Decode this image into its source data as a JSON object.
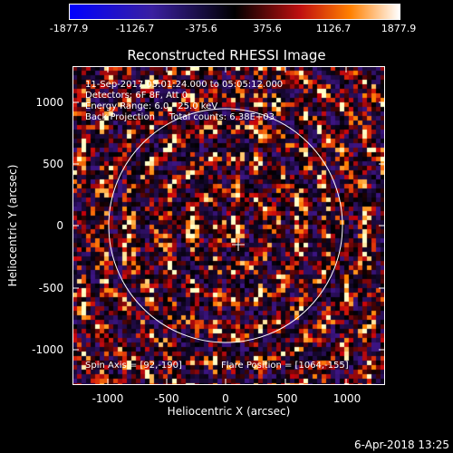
{
  "title": "Reconstructed RHESSI Image",
  "colorbar": {
    "ticks": [
      "-1877.9",
      "-1126.7",
      "-375.6",
      "375.6",
      "1126.7",
      "1877.9"
    ],
    "min": -1877.9,
    "max": 1877.9
  },
  "info_lines": {
    "time": "11-Sep-2017 05:01:24.000 to 05:05:12.000",
    "detectors": "Detectors: 6F 8F, Att 0",
    "energy": "Energy Range: 6.0 - 25.0 keV",
    "method": "Back Projection     Total counts: 6.38E+03"
  },
  "spin_axis": "Spin Axis = [92,-190]",
  "flare_position": "Flare Position = [1064,-155]",
  "axes": {
    "xlabel": "Heliocentric X (arcsec)",
    "ylabel": "Heliocentric Y (arcsec)",
    "xticks": [
      "-1000",
      "-500",
      "0",
      "500",
      "1000"
    ],
    "yticks": [
      "1000",
      "500",
      "0",
      "-500",
      "-1000"
    ],
    "xlim": [
      -1280,
      1290
    ],
    "ylim": [
      -1285,
      1280
    ]
  },
  "footer": "6-Apr-2018 13:25",
  "colors": {
    "circle": "#ffffff",
    "background": "#000000"
  }
}
